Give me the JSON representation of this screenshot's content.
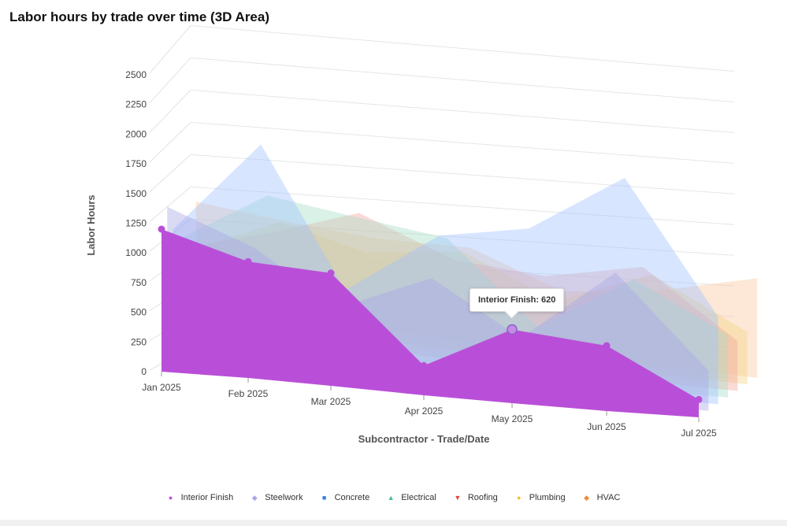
{
  "chart_data": {
    "type": "area",
    "variant": "3d",
    "title": "Labor hours by trade over time (3D Area)",
    "xlabel": "Subcontractor - Trade/Date",
    "ylabel": "Labor Hours",
    "categories": [
      "Jan 2025",
      "Feb 2025",
      "Mar 2025",
      "Apr 2025",
      "May 2025",
      "Jun 2025",
      "Jul 2025"
    ],
    "ylim": [
      0,
      2500
    ],
    "yticks": [
      0,
      250,
      500,
      750,
      1000,
      1250,
      1500,
      1750,
      2000,
      2250,
      2500
    ],
    "grid": true,
    "legend_position": "bottom",
    "series": [
      {
        "name": "Interior Finish",
        "color": "#b94fd8",
        "marker": "circle",
        "values": [
          1200,
          980,
          950,
          250,
          620,
          550,
          150
        ]
      },
      {
        "name": "Steelwork",
        "color": "#a7a6e8",
        "marker": "diamond",
        "values": [
          1350,
          1050,
          600,
          950,
          500,
          1150,
          350
        ]
      },
      {
        "name": "Concrete",
        "color": "#9fc2ff",
        "marker": "square",
        "values": [
          1100,
          1950,
          700,
          1300,
          1450,
          2000,
          800
        ]
      },
      {
        "name": "Electrical",
        "color": "#a6ddc5",
        "marker": "triangle",
        "values": [
          950,
          1450,
          1350,
          1250,
          500,
          1050,
          600
        ]
      },
      {
        "name": "Roofing",
        "color": "#f2a8a0",
        "marker": "triangle-down",
        "values": [
          800,
          1050,
          1350,
          1000,
          950,
          1150,
          500
        ]
      },
      {
        "name": "Plumbing",
        "color": "#f4d383",
        "marker": "circle",
        "values": [
          700,
          1100,
          900,
          1050,
          650,
          1050,
          550
        ]
      },
      {
        "name": "HVAC",
        "color": "#fbc9a0",
        "marker": "diamond",
        "values": [
          1150,
          1050,
          1000,
          1050,
          700,
          850,
          1100
        ]
      }
    ],
    "tooltip": {
      "text": "Interior Finish: 620",
      "series": "Interior Finish",
      "category": "May 2025"
    }
  }
}
